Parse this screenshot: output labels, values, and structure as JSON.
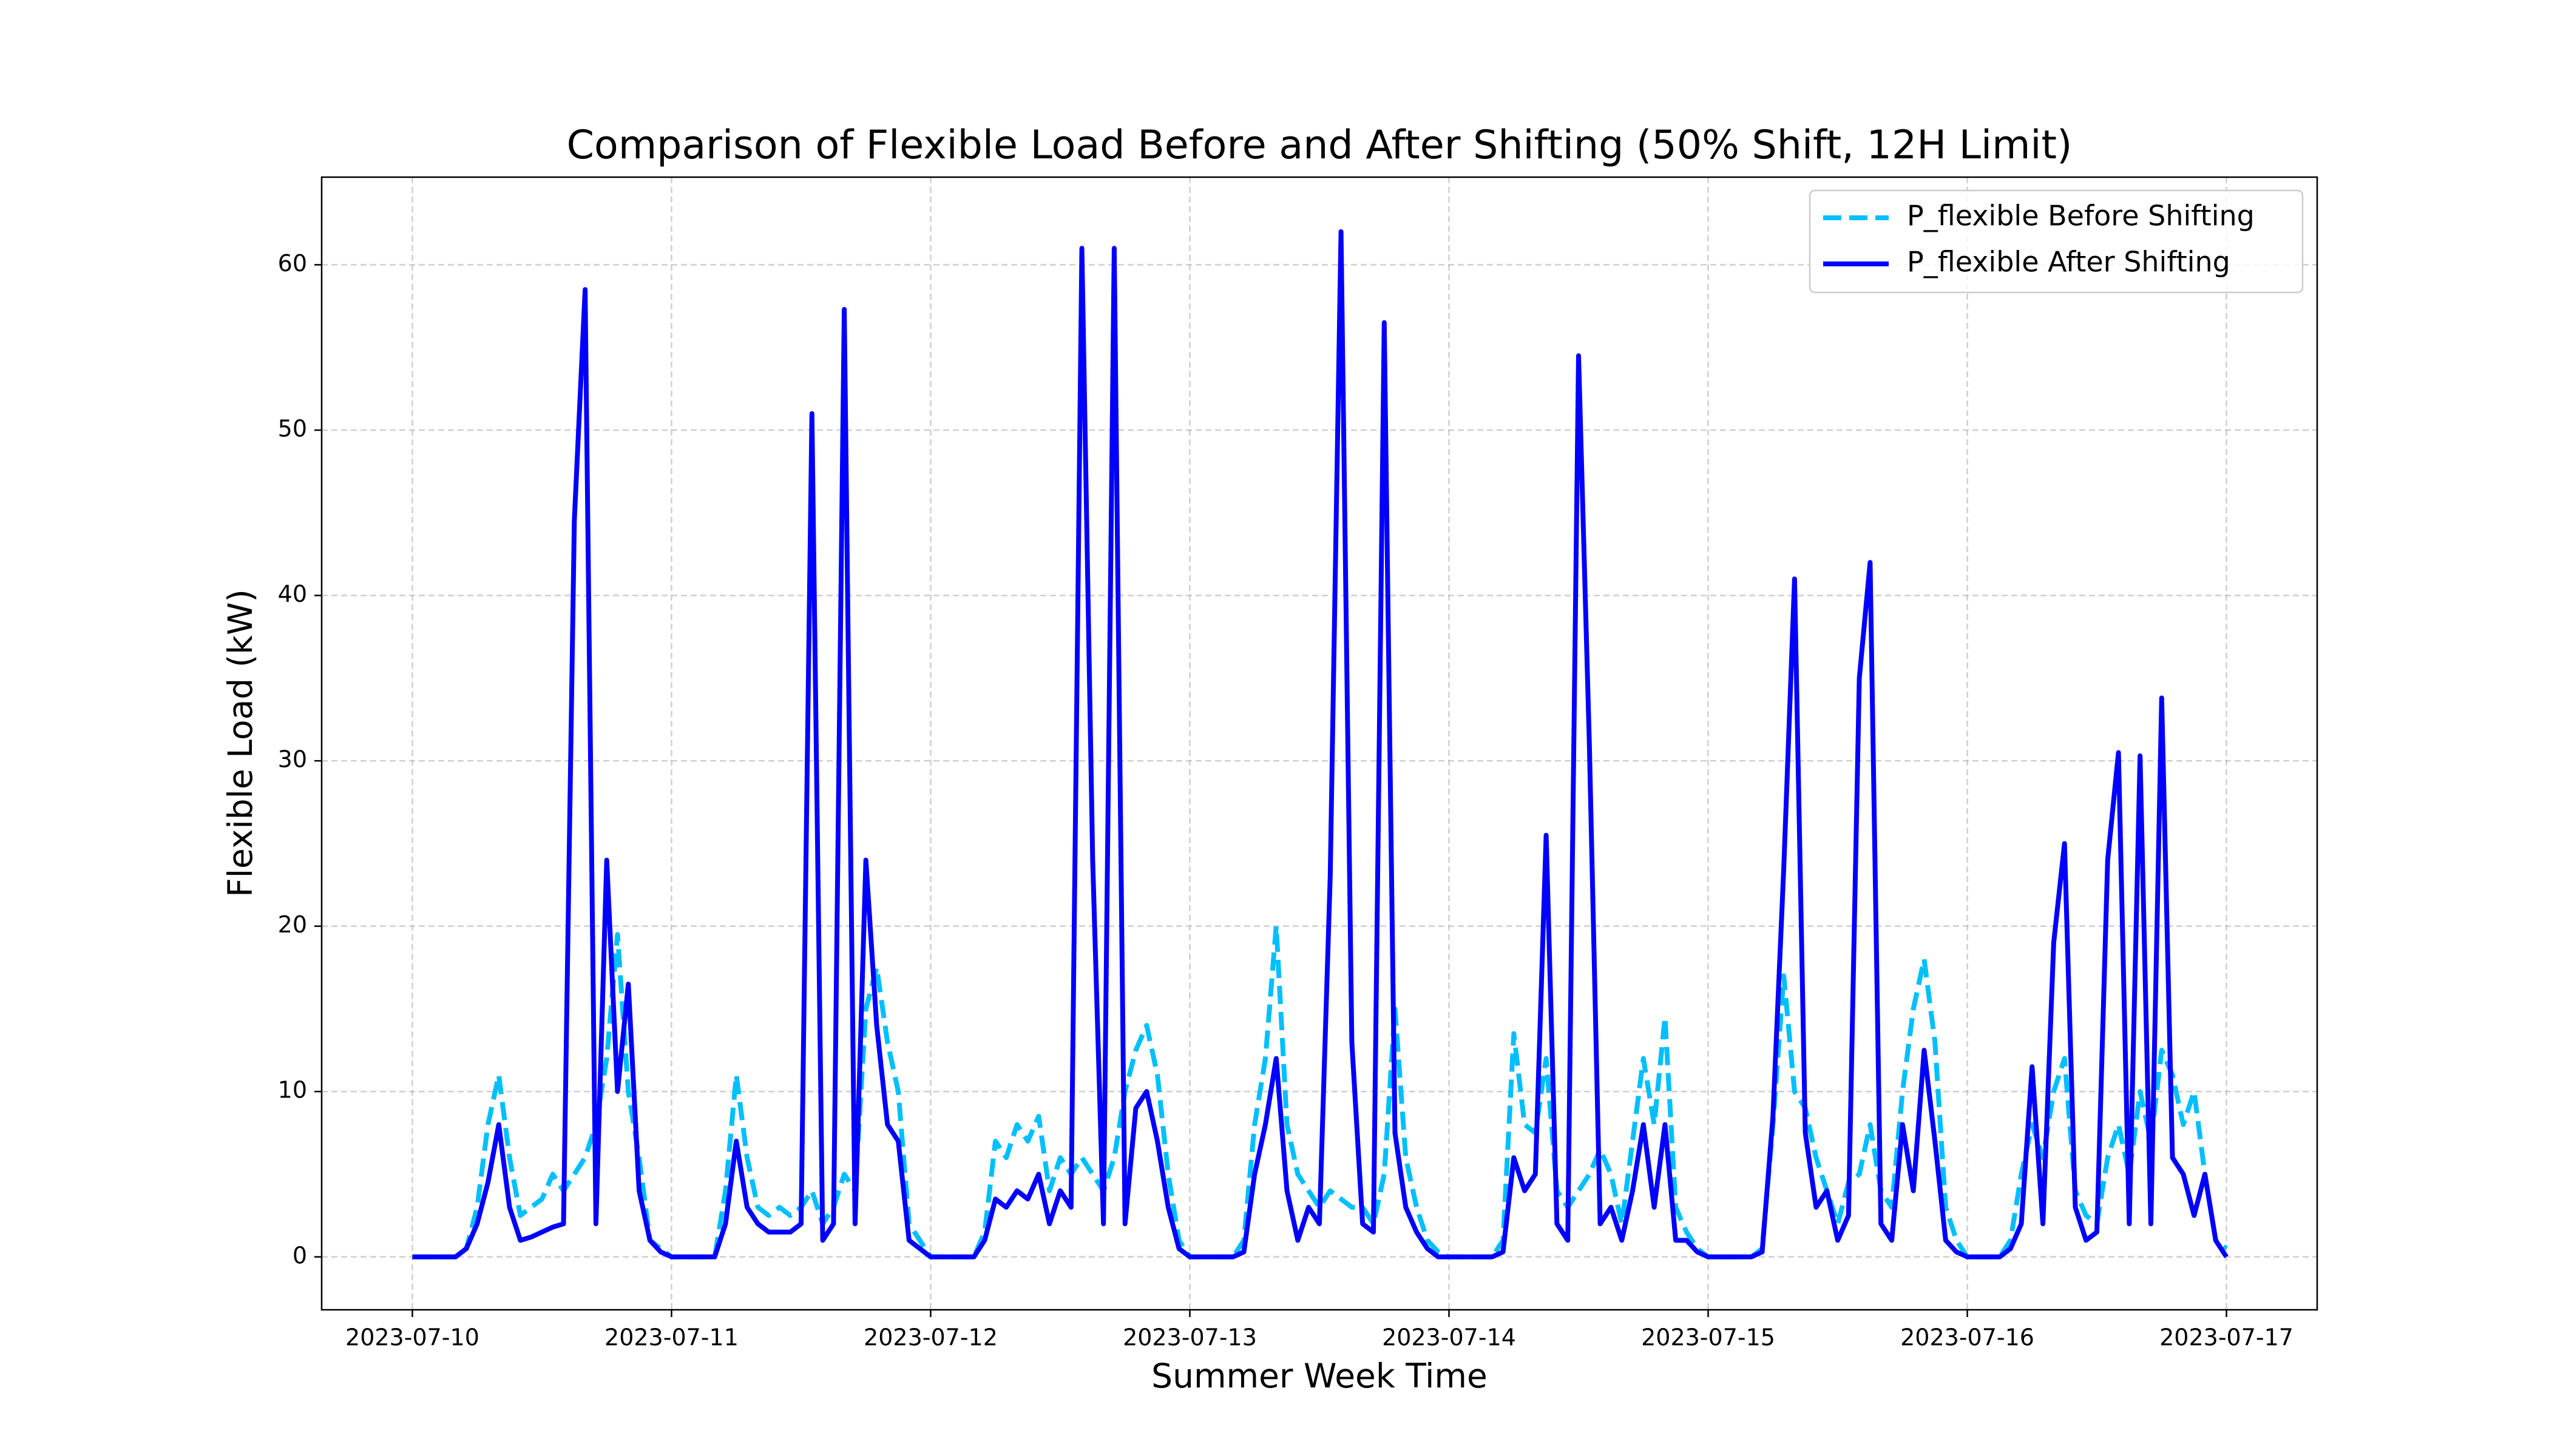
{
  "chart_data": {
    "type": "line",
    "title": "Comparison of Flexible Load Before and After Shifting (50% Shift, 12H Limit)",
    "xlabel": "Summer Week Time",
    "ylabel": "Flexible Load (kW)",
    "x": [
      0,
      1,
      2,
      3,
      4,
      5,
      6,
      7,
      8,
      9,
      10,
      11,
      12,
      13,
      14,
      15,
      16,
      17,
      18,
      19,
      20,
      21,
      22,
      23,
      24,
      25,
      26,
      27,
      28,
      29,
      30,
      31,
      32,
      33,
      34,
      35,
      36,
      37,
      38,
      39,
      40,
      41,
      42,
      43,
      44,
      45,
      46,
      47,
      48,
      49,
      50,
      51,
      52,
      53,
      54,
      55,
      56,
      57,
      58,
      59,
      60,
      61,
      62,
      63,
      64,
      65,
      66,
      67,
      68,
      69,
      70,
      71,
      72,
      73,
      74,
      75,
      76,
      77,
      78,
      79,
      80,
      81,
      82,
      83,
      84,
      85,
      86,
      87,
      88,
      89,
      90,
      91,
      92,
      93,
      94,
      95,
      96,
      97,
      98,
      99,
      100,
      101,
      102,
      103,
      104,
      105,
      106,
      107,
      108,
      109,
      110,
      111,
      112,
      113,
      114,
      115,
      116,
      117,
      118,
      119,
      120,
      121,
      122,
      123,
      124,
      125,
      126,
      127,
      128,
      129,
      130,
      131,
      132,
      133,
      134,
      135,
      136,
      137,
      138,
      139,
      140,
      141,
      142,
      143,
      144,
      145,
      146,
      147,
      148,
      149,
      150,
      151,
      152,
      153,
      154,
      155,
      156,
      157,
      158,
      159,
      160,
      161,
      162,
      163,
      164,
      165,
      166,
      167,
      168
    ],
    "series": [
      {
        "name": "P_flexible Before Shifting",
        "color": "#00bfff",
        "linestyle": "dashed",
        "values": [
          0,
          0,
          0,
          0,
          0,
          0.5,
          3,
          8,
          11,
          6,
          2.5,
          3,
          3.5,
          5,
          4,
          5,
          6,
          8,
          12,
          19.5,
          10,
          6,
          1,
          0.5,
          0,
          0,
          0,
          0,
          0,
          4,
          11,
          6,
          3,
          2.5,
          3,
          2.5,
          3,
          4,
          2,
          3,
          5,
          4,
          15,
          17.5,
          13,
          10,
          2,
          1,
          0,
          0,
          0,
          0,
          0,
          1.5,
          7,
          6,
          8,
          7,
          8.5,
          4,
          6,
          5,
          6,
          5,
          4,
          6,
          10,
          12.5,
          14,
          11,
          5,
          1,
          0,
          0,
          0,
          0,
          0,
          1,
          8,
          12,
          20,
          8,
          5,
          4,
          3,
          4,
          3.5,
          3,
          3,
          2,
          5,
          15,
          6,
          3,
          1,
          0.3,
          0,
          0,
          0,
          0,
          0,
          1,
          13.5,
          8,
          7.5,
          12,
          4,
          3,
          4,
          5,
          6.5,
          5,
          2,
          7,
          12,
          8,
          14.5,
          3,
          1.5,
          0.5,
          0,
          0,
          0,
          0,
          0,
          0.5,
          8,
          17,
          10,
          9,
          6,
          4,
          2,
          4.5,
          5,
          8,
          4,
          3,
          10,
          15,
          18,
          13,
          3,
          1,
          0,
          0,
          0,
          0,
          1,
          5,
          8,
          6,
          10,
          12,
          4,
          2.5,
          2,
          6,
          8,
          5,
          10,
          7,
          12.5,
          11,
          8,
          10,
          5,
          1,
          0.5
        ]
      },
      {
        "name": "P_flexible After Shifting",
        "color": "#0000ff",
        "linestyle": "solid",
        "values": [
          0,
          0,
          0,
          0,
          0,
          0.5,
          2,
          4.5,
          8,
          3,
          1,
          1.2,
          1.5,
          1.8,
          2,
          44.5,
          58.5,
          2,
          24,
          10,
          16.5,
          4,
          1,
          0.3,
          0,
          0,
          0,
          0,
          0,
          2,
          7,
          3,
          2,
          1.5,
          1.5,
          1.5,
          2,
          51,
          1,
          2,
          57.3,
          2,
          24,
          14,
          8,
          7,
          1,
          0.5,
          0,
          0,
          0,
          0,
          0,
          1,
          3.5,
          3,
          4,
          3.5,
          5,
          2,
          4,
          3,
          61,
          24,
          2,
          61,
          2,
          9,
          10,
          7,
          3,
          0.5,
          0,
          0,
          0,
          0,
          0,
          0.3,
          5,
          8,
          12,
          4,
          1,
          3,
          2,
          23,
          62,
          13,
          2,
          1.5,
          56.5,
          7.5,
          3,
          1.5,
          0.5,
          0,
          0,
          0,
          0,
          0,
          0,
          0.3,
          6,
          4,
          5,
          25.5,
          2,
          1,
          54.5,
          31,
          2,
          3,
          1,
          4,
          8,
          3,
          8,
          1,
          1,
          0.3,
          0,
          0,
          0,
          0,
          0,
          0.3,
          8.5,
          23.5,
          41,
          7.5,
          3,
          4,
          1,
          2.5,
          35,
          42,
          2,
          1,
          8,
          4,
          12.5,
          7,
          1,
          0.3,
          0,
          0,
          0,
          0,
          0.5,
          2,
          11.5,
          2,
          19,
          25,
          3,
          1,
          1.5,
          24,
          30.5,
          2,
          30.3,
          2,
          33.8,
          6,
          5,
          2.5,
          5,
          1,
          0
        ]
      }
    ],
    "xlim": [
      -8.4,
      176.4
    ],
    "xticks": [
      {
        "value": 0,
        "label": "2023-07-10"
      },
      {
        "value": 24,
        "label": "2023-07-11"
      },
      {
        "value": 48,
        "label": "2023-07-12"
      },
      {
        "value": 72,
        "label": "2023-07-13"
      },
      {
        "value": 96,
        "label": "2023-07-14"
      },
      {
        "value": 120,
        "label": "2023-07-15"
      },
      {
        "value": 144,
        "label": "2023-07-16"
      },
      {
        "value": 168,
        "label": "2023-07-17"
      }
    ],
    "ylim": [
      -3.2,
      65.3
    ],
    "yticks": [
      0,
      10,
      20,
      30,
      40,
      50,
      60
    ],
    "grid": true,
    "legend": "upper right"
  }
}
